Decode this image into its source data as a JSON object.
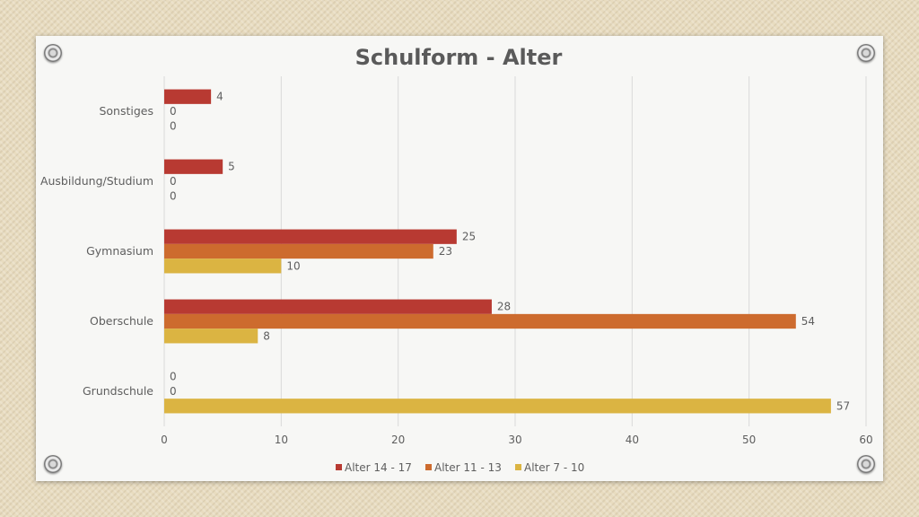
{
  "chart_data": {
    "type": "bar",
    "orientation": "horizontal",
    "title": "Schulform - Alter",
    "categories": [
      "Sonstiges",
      "Ausbildung/Studium",
      "Gymnasium",
      "Oberschule",
      "Grundschule"
    ],
    "series": [
      {
        "name": "Alter 14 - 17",
        "values": [
          4,
          5,
          25,
          28,
          0
        ],
        "color": "#b83a32"
      },
      {
        "name": "Alter 11 - 13",
        "values": [
          0,
          0,
          23,
          54,
          0
        ],
        "color": "#cd6b2e"
      },
      {
        "name": "Alter 7 - 10",
        "values": [
          0,
          0,
          10,
          8,
          57
        ],
        "color": "#dbb442"
      }
    ],
    "xlim": [
      0,
      60
    ],
    "xticks": [
      "0",
      "10",
      "20",
      "30",
      "40",
      "50",
      "60"
    ],
    "grid": true,
    "legend": "bottom",
    "data_labels": true
  },
  "colors": {
    "title": "#5a5a5a",
    "text": "#5e5e5e",
    "grid": "#d9d9d9",
    "card": "#f7f7f5"
  }
}
